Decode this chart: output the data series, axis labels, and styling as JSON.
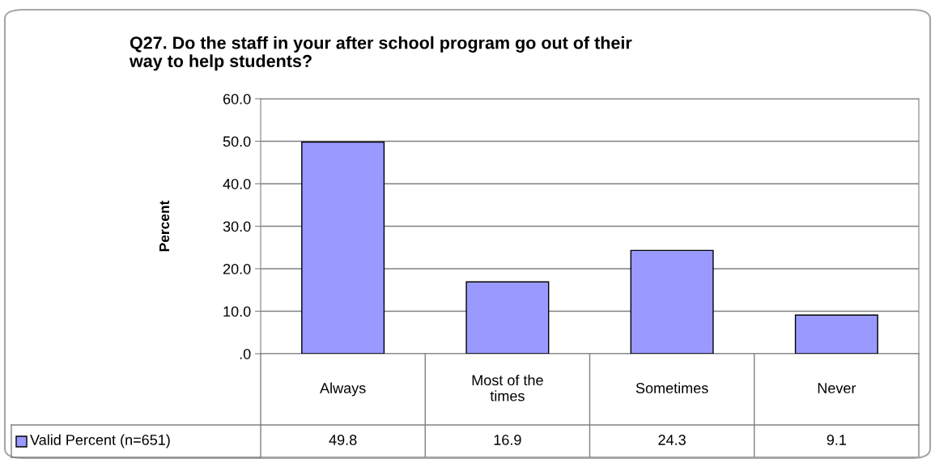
{
  "chart_data": {
    "type": "bar",
    "title": "Q27. Do the staff in your after school program go out of their way to help students?",
    "ylabel": "Percent",
    "categories": [
      "Always",
      "Most of the times",
      "Sometimes",
      "Never"
    ],
    "series": [
      {
        "name": "Valid Percent (n=651)",
        "color": "#9999ff",
        "values": [
          49.8,
          16.9,
          24.3,
          9.1
        ]
      }
    ],
    "ylim": [
      0,
      60
    ],
    "yticks": [
      {
        "value": 0,
        "label": ".0"
      },
      {
        "value": 10,
        "label": "10.0"
      },
      {
        "value": 20,
        "label": "20.0"
      },
      {
        "value": 30,
        "label": "30.0"
      },
      {
        "value": 40,
        "label": "40.0"
      },
      {
        "value": 50,
        "label": "50.0"
      },
      {
        "value": 60,
        "label": "60.0"
      }
    ],
    "value_labels": [
      "49.8",
      "16.9",
      "24.3",
      "9.1"
    ],
    "grid": "y",
    "legend": "bottom"
  }
}
